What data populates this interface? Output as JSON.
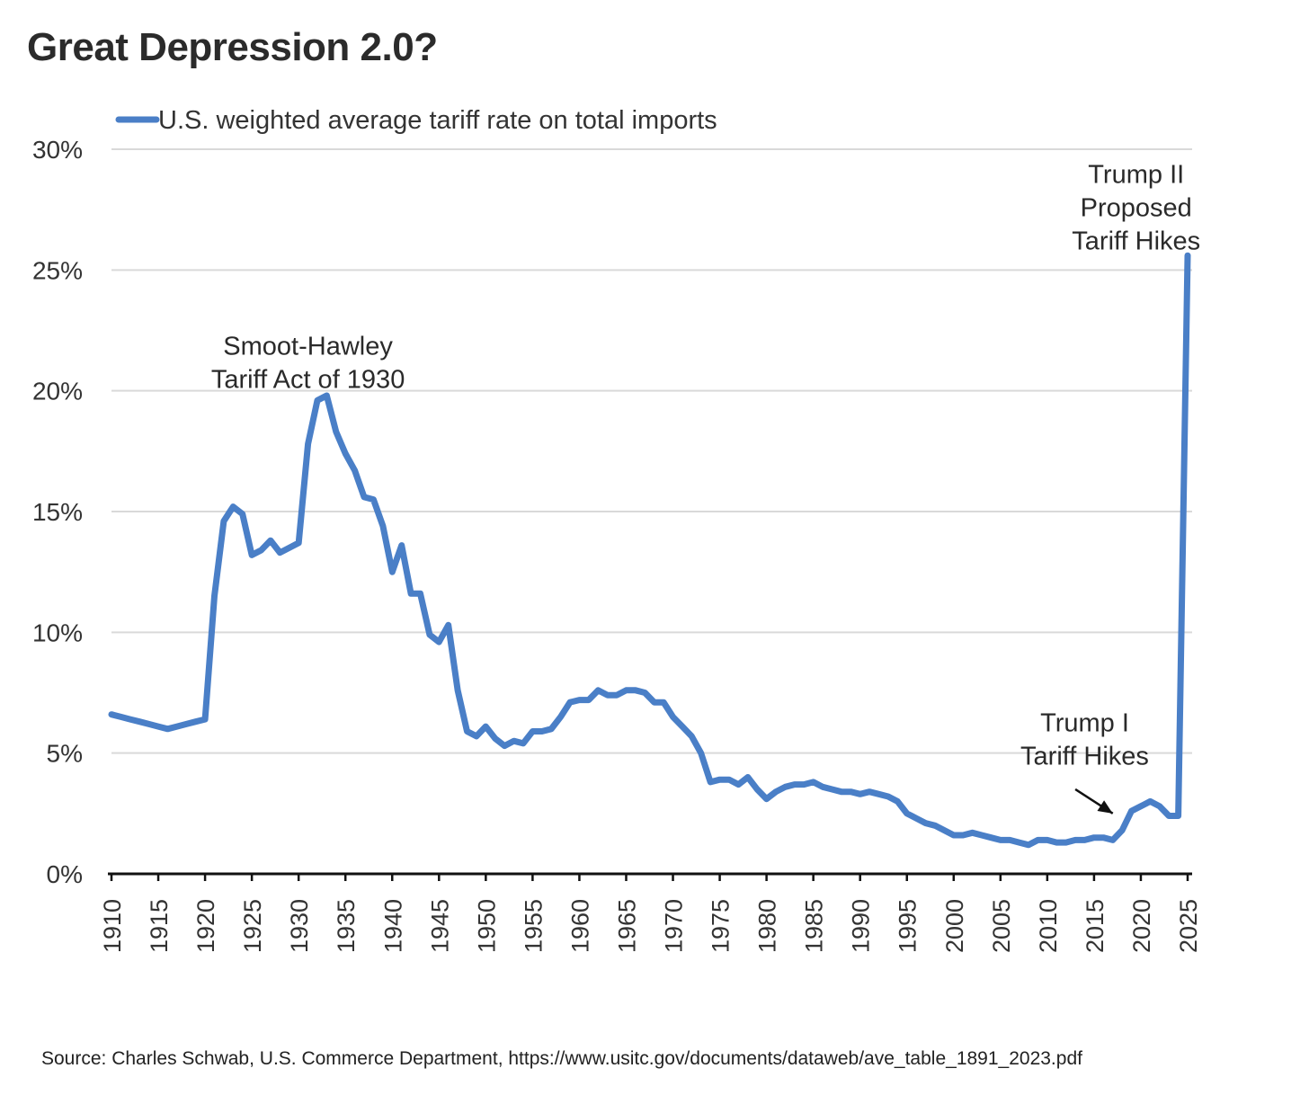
{
  "title": "Great Depression 2.0?",
  "source": "Source: Charles Schwab, U.S. Commerce Department, https://www.usitc.gov/documents/dataweb/ave_table_1891_2023.pdf",
  "colors": {
    "line": "#4a7fc7",
    "grid": "#d9d9d9",
    "axis": "#111111"
  },
  "chart_data": {
    "type": "line",
    "title": "Great Depression 2.0?",
    "xlabel": "",
    "ylabel": "",
    "xlim": [
      1910,
      2025
    ],
    "ylim": [
      0,
      30
    ],
    "yticks": [
      0,
      5,
      10,
      15,
      20,
      25,
      30
    ],
    "ytick_labels": [
      "0%",
      "5%",
      "10%",
      "15%",
      "20%",
      "25%",
      "30%"
    ],
    "xticks": [
      1910,
      1915,
      1920,
      1925,
      1930,
      1935,
      1940,
      1945,
      1950,
      1955,
      1960,
      1965,
      1970,
      1975,
      1980,
      1985,
      1990,
      1995,
      2000,
      2005,
      2010,
      2015,
      2020,
      2025
    ],
    "grid": true,
    "legend": {
      "position": "top-left",
      "entries": [
        "U.S. weighted average tariff rate on total imports"
      ]
    },
    "series": [
      {
        "name": "U.S. weighted average tariff rate on total imports",
        "x": [
          1910,
          1911,
          1912,
          1913,
          1914,
          1915,
          1916,
          1917,
          1918,
          1919,
          1920,
          1921,
          1922,
          1923,
          1924,
          1925,
          1926,
          1927,
          1928,
          1929,
          1930,
          1931,
          1932,
          1933,
          1934,
          1935,
          1936,
          1937,
          1938,
          1939,
          1940,
          1941,
          1942,
          1943,
          1944,
          1945,
          1946,
          1947,
          1948,
          1949,
          1950,
          1951,
          1952,
          1953,
          1954,
          1955,
          1956,
          1957,
          1958,
          1959,
          1960,
          1961,
          1962,
          1963,
          1964,
          1965,
          1966,
          1967,
          1968,
          1969,
          1970,
          1971,
          1972,
          1973,
          1974,
          1975,
          1976,
          1977,
          1978,
          1979,
          1980,
          1981,
          1982,
          1983,
          1984,
          1985,
          1986,
          1987,
          1988,
          1989,
          1990,
          1991,
          1992,
          1993,
          1994,
          1995,
          1996,
          1997,
          1998,
          1999,
          2000,
          2001,
          2002,
          2003,
          2004,
          2005,
          2006,
          2007,
          2008,
          2009,
          2010,
          2011,
          2012,
          2013,
          2014,
          2015,
          2016,
          2017,
          2018,
          2019,
          2020,
          2021,
          2022,
          2023,
          2024,
          2025
        ],
        "values": [
          6.6,
          6.5,
          6.4,
          6.3,
          6.2,
          6.1,
          6.0,
          6.1,
          6.2,
          6.3,
          6.4,
          11.5,
          14.6,
          15.2,
          14.9,
          13.2,
          13.4,
          13.8,
          13.3,
          13.5,
          13.7,
          17.8,
          19.6,
          19.8,
          18.3,
          17.4,
          16.7,
          15.6,
          15.5,
          14.4,
          12.5,
          13.6,
          11.6,
          11.6,
          9.9,
          9.6,
          10.3,
          7.6,
          5.9,
          5.7,
          6.1,
          5.6,
          5.3,
          5.5,
          5.4,
          5.9,
          5.9,
          6.0,
          6.5,
          7.1,
          7.2,
          7.2,
          7.6,
          7.4,
          7.4,
          7.6,
          7.6,
          7.5,
          7.1,
          7.1,
          6.5,
          6.1,
          5.7,
          5.0,
          3.8,
          3.9,
          3.9,
          3.7,
          4.0,
          3.5,
          3.1,
          3.4,
          3.6,
          3.7,
          3.7,
          3.8,
          3.6,
          3.5,
          3.4,
          3.4,
          3.3,
          3.4,
          3.3,
          3.2,
          3.0,
          2.5,
          2.3,
          2.1,
          2.0,
          1.8,
          1.6,
          1.6,
          1.7,
          1.6,
          1.5,
          1.4,
          1.4,
          1.3,
          1.2,
          1.4,
          1.4,
          1.3,
          1.3,
          1.4,
          1.4,
          1.5,
          1.5,
          1.4,
          1.8,
          2.6,
          2.8,
          3.0,
          2.8,
          2.4,
          2.4,
          25.6
        ]
      }
    ],
    "annotations": [
      {
        "lines": [
          "Smoot-Hawley",
          "Tariff Act of 1930"
        ],
        "x": 1931,
        "y": 21.5
      },
      {
        "lines": [
          "Trump I",
          "Tariff Hikes"
        ],
        "x": 2014,
        "y": 5.9,
        "arrow_to": [
          2017,
          2.5
        ],
        "arrow_from": [
          2013,
          3.5
        ]
      },
      {
        "lines": [
          "Trump II",
          "Proposed",
          "Tariff Hikes"
        ],
        "x": 2019.5,
        "y": 28.6
      }
    ]
  }
}
